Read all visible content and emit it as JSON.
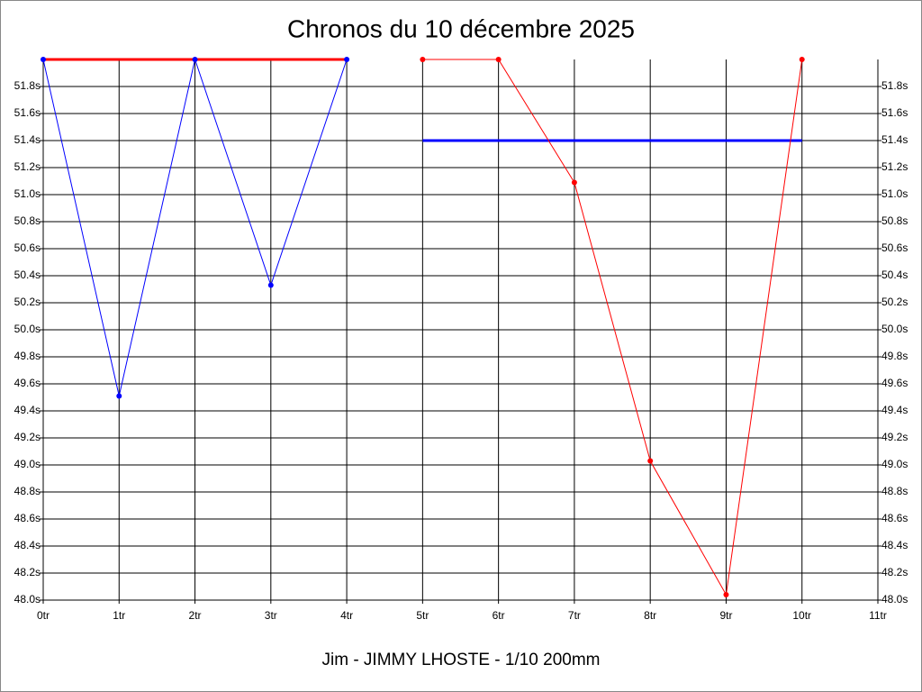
{
  "chart_data": {
    "type": "line",
    "title": "Chronos du 10 décembre 2025",
    "xlabel": "Jim - JIMMY LHOSTE - 1/10 200mm",
    "x": [
      0,
      1,
      2,
      3,
      4,
      5,
      6,
      7,
      8,
      9,
      10
    ],
    "xlim": [
      0,
      11
    ],
    "xticks": [
      {
        "value": 0,
        "label": "0tr"
      },
      {
        "value": 1,
        "label": "1tr"
      },
      {
        "value": 2,
        "label": "2tr"
      },
      {
        "value": 3,
        "label": "3tr"
      },
      {
        "value": 4,
        "label": "4tr"
      },
      {
        "value": 5,
        "label": "5tr"
      },
      {
        "value": 6,
        "label": "6tr"
      },
      {
        "value": 7,
        "label": "7tr"
      },
      {
        "value": 8,
        "label": "8tr"
      },
      {
        "value": 9,
        "label": "9tr"
      },
      {
        "value": 10,
        "label": "10tr"
      },
      {
        "value": 11,
        "label": "11tr"
      }
    ],
    "ylim": [
      48.0,
      52.0
    ],
    "yticks": [
      {
        "value": 48.0,
        "label": "48.0s"
      },
      {
        "value": 48.2,
        "label": "48.2s"
      },
      {
        "value": 48.4,
        "label": "48.4s"
      },
      {
        "value": 48.6,
        "label": "48.6s"
      },
      {
        "value": 48.8,
        "label": "48.8s"
      },
      {
        "value": 49.0,
        "label": "49.0s"
      },
      {
        "value": 49.2,
        "label": "49.2s"
      },
      {
        "value": 49.4,
        "label": "49.4s"
      },
      {
        "value": 49.6,
        "label": "49.6s"
      },
      {
        "value": 49.8,
        "label": "49.8s"
      },
      {
        "value": 50.0,
        "label": "50.0s"
      },
      {
        "value": 50.2,
        "label": "50.2s"
      },
      {
        "value": 50.4,
        "label": "50.4s"
      },
      {
        "value": 50.6,
        "label": "50.6s"
      },
      {
        "value": 50.8,
        "label": "50.8s"
      },
      {
        "value": 51.0,
        "label": "51.0s"
      },
      {
        "value": 51.2,
        "label": "51.2s"
      },
      {
        "value": 51.4,
        "label": "51.4s"
      },
      {
        "value": 51.6,
        "label": "51.6s"
      },
      {
        "value": 51.8,
        "label": "51.8s"
      }
    ],
    "grid": true,
    "series": [
      {
        "color": "#ff0000",
        "line_width": 3,
        "markers": false,
        "values": [
          52.0,
          52.0,
          52.0,
          52.0,
          52.0,
          null,
          null,
          null,
          null,
          null,
          null
        ]
      },
      {
        "color": "#0000ff",
        "line_width": 3,
        "markers": false,
        "values": [
          null,
          null,
          null,
          null,
          null,
          51.4,
          51.4,
          51.4,
          51.4,
          51.4,
          51.4
        ]
      },
      {
        "color": "#0000ff",
        "line_width": 1,
        "markers": true,
        "values": [
          52.0,
          49.51,
          52.0,
          50.33,
          52.0,
          null,
          null,
          null,
          null,
          null,
          null
        ]
      },
      {
        "color": "#ff0000",
        "line_width": 1,
        "markers": true,
        "values": [
          null,
          null,
          null,
          null,
          null,
          52.0,
          52.0,
          51.09,
          49.03,
          48.04,
          52.0
        ]
      }
    ]
  }
}
